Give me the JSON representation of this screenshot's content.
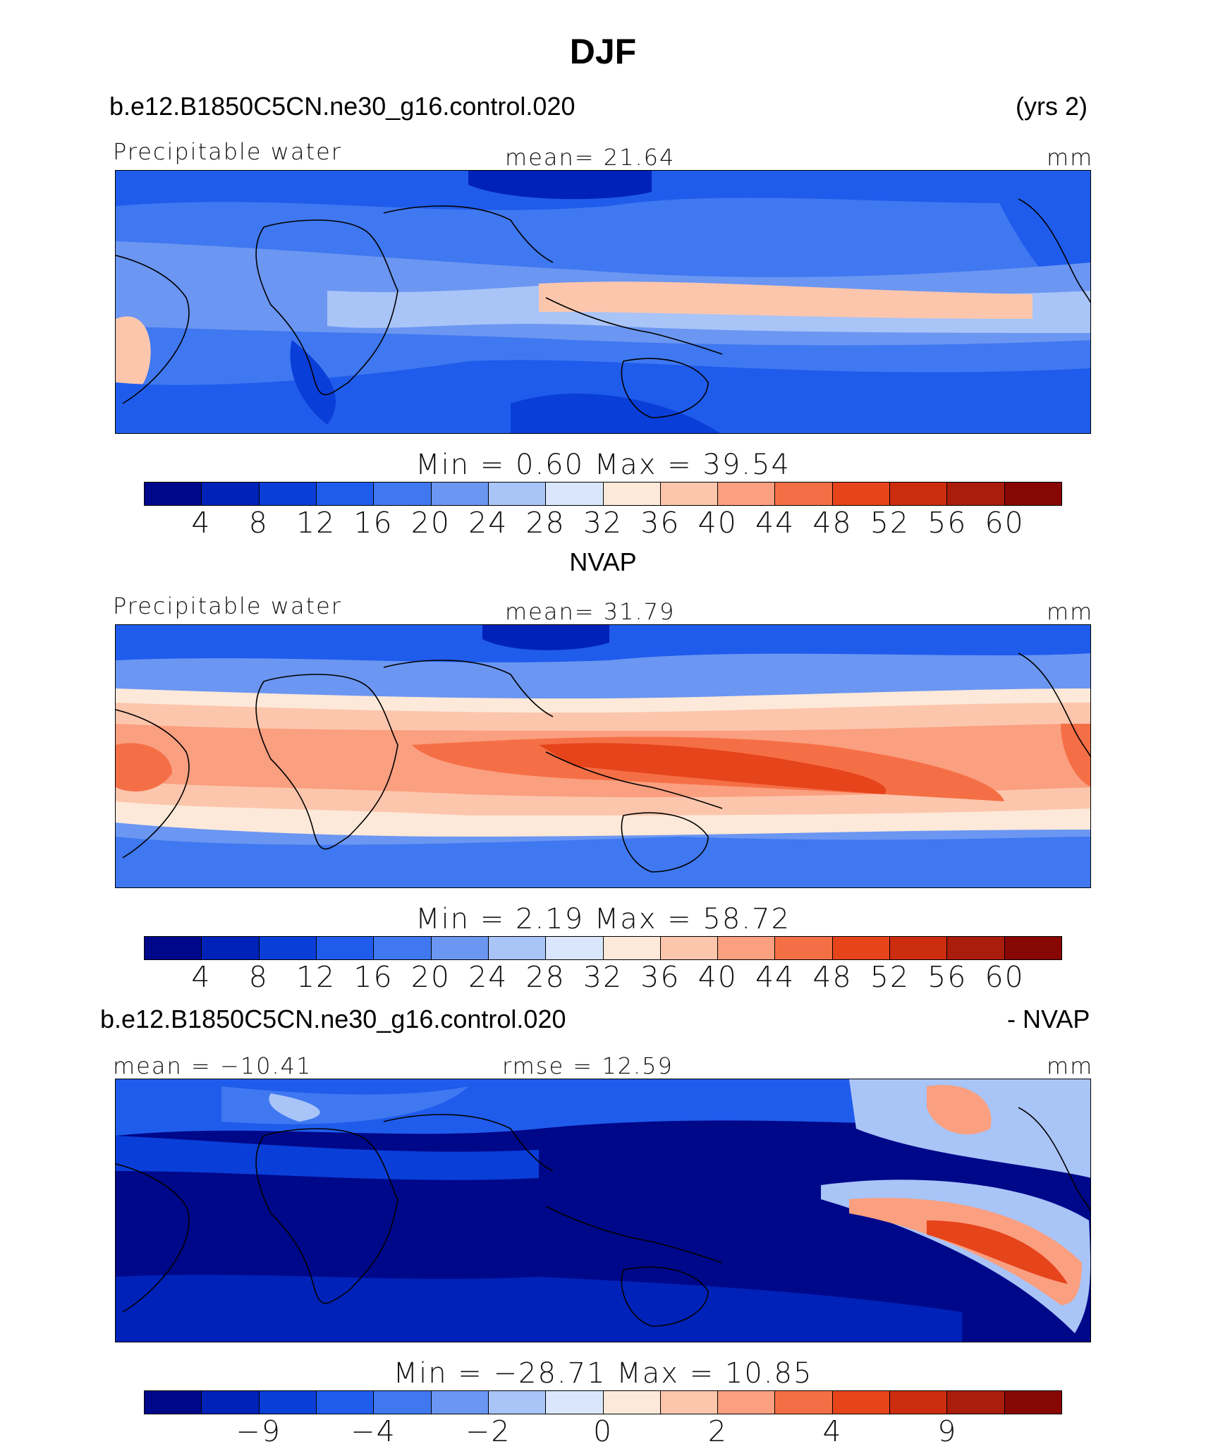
{
  "title": "DJF",
  "panel1": {
    "left_header": "b.e12.B1850C5CN.ne30_g16.control.020",
    "right_header": "(yrs 2)",
    "variable": "Precipitable water",
    "stat": "mean=   21.64",
    "units": "mm",
    "minmax": "Min =     0.60  Max =    39.54"
  },
  "panel2": {
    "center_header": "NVAP",
    "variable": "Precipitable water",
    "stat": "mean=   31.79",
    "units": "mm",
    "minmax": "Min =     2.19  Max =    58.72"
  },
  "panel3": {
    "left_header": "b.e12.B1850C5CN.ne30_g16.control.020",
    "right_header": "- NVAP",
    "stat_left": "mean = −10.41",
    "stat_center": "rmse =   12.59",
    "units": "mm",
    "minmax": "Min = −28.71  Max =   10.85"
  },
  "colorbar_colors": [
    "#00088a",
    "#0022b8",
    "#0a3ed8",
    "#1f5cec",
    "#3f78f0",
    "#6b96f2",
    "#a9c4f7",
    "#d9e6fb",
    "#fde9d9",
    "#fcc6ad",
    "#fa9f7f",
    "#f56f46",
    "#e6441b",
    "#cd2d0f",
    "#aa1c0c",
    "#870705"
  ],
  "colorbar_abs_ticks": [
    "4",
    "8",
    "12",
    "16",
    "20",
    "24",
    "28",
    "32",
    "36",
    "40",
    "44",
    "48",
    "52",
    "56",
    "60"
  ],
  "colorbar_diff_ticks": [
    "−9",
    "−4",
    "−2",
    "0",
    "2",
    "4",
    "9"
  ]
}
